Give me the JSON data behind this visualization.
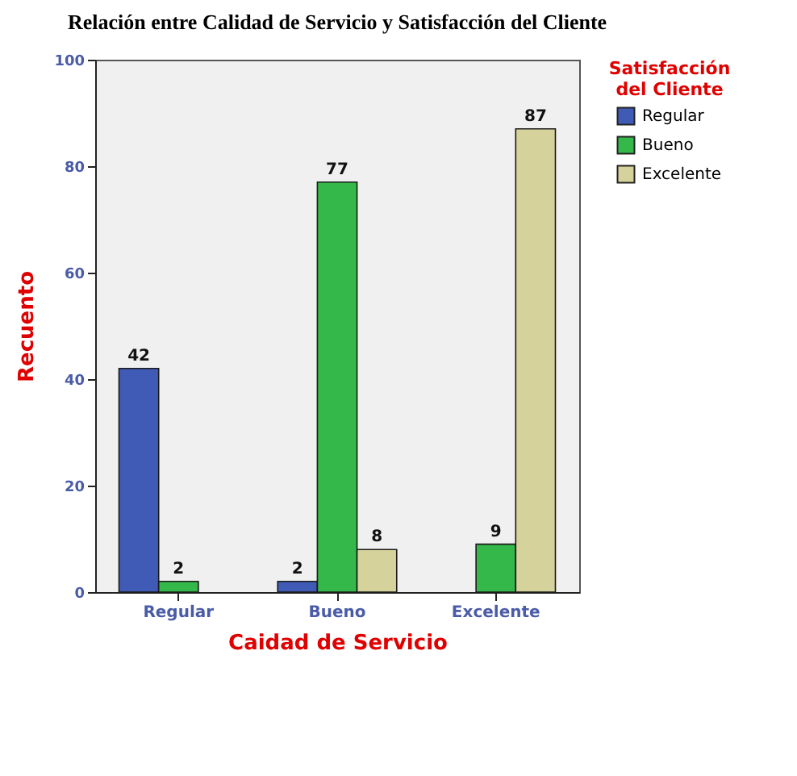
{
  "chart_data": {
    "type": "bar",
    "title": "Relación entre Calidad de Servicio y Satisfacción del Cliente",
    "xlabel": "Caidad de Servicio",
    "ylabel": "Recuento",
    "legend_title": "Satisfacción del Cliente",
    "categories": [
      "Regular",
      "Bueno",
      "Excelente"
    ],
    "series": [
      {
        "name": "Regular",
        "color": "#3f5bb5",
        "values": [
          42,
          2,
          null
        ]
      },
      {
        "name": "Bueno",
        "color": "#35b84a",
        "values": [
          2,
          77,
          9
        ]
      },
      {
        "name": "Excelente",
        "color": "#d5d29b",
        "values": [
          null,
          8,
          87
        ]
      }
    ],
    "ylim": [
      0,
      100
    ],
    "yticks": [
      0,
      20,
      40,
      60,
      80,
      100
    ],
    "data_labels": true,
    "legend": "top right"
  }
}
